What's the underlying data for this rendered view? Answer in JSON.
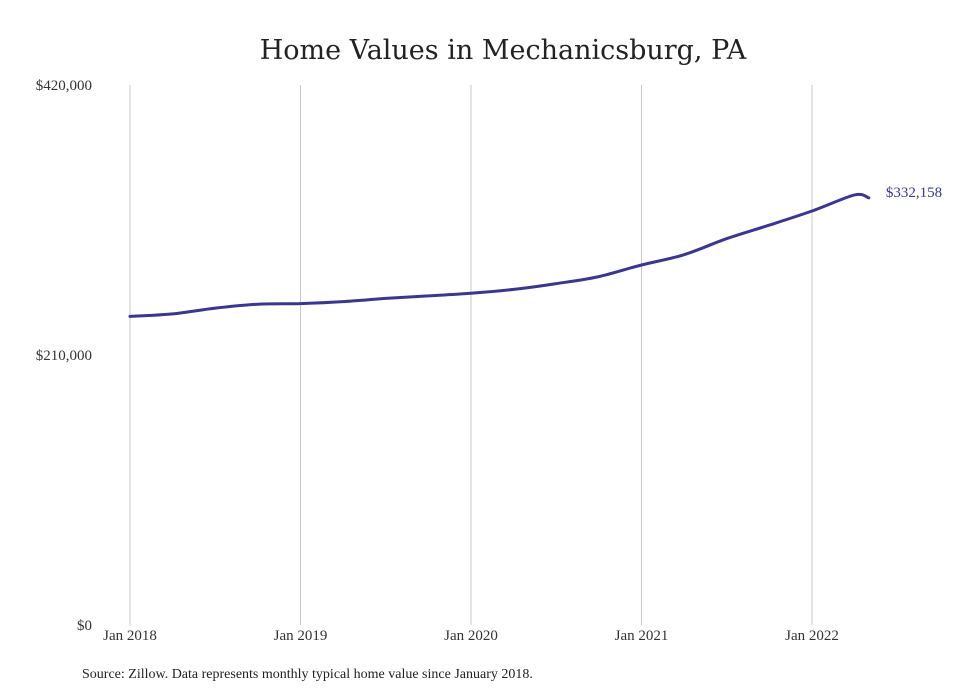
{
  "chart_data": {
    "type": "line",
    "title": "Home Values in Mechanicsburg, PA",
    "xlabel": "",
    "ylabel": "",
    "ylim": [
      0,
      420000
    ],
    "y_ticks": [
      {
        "value": 0,
        "label": "$0"
      },
      {
        "value": 210000,
        "label": "$210,000"
      },
      {
        "value": 420000,
        "label": "$420,000"
      }
    ],
    "x_ticks": [
      {
        "value": "2018-01",
        "label": "Jan 2018"
      },
      {
        "value": "2019-01",
        "label": "Jan 2019"
      },
      {
        "value": "2020-01",
        "label": "Jan 2020"
      },
      {
        "value": "2021-01",
        "label": "Jan 2021"
      },
      {
        "value": "2022-01",
        "label": "Jan 2022"
      }
    ],
    "xlim": [
      "2018-01",
      "2022-05"
    ],
    "grid": "vertical",
    "color": "#3a3596",
    "series": [
      {
        "x": [
          "2018-01",
          "2018-04",
          "2018-07",
          "2018-10",
          "2019-01",
          "2019-04",
          "2019-07",
          "2019-10",
          "2020-01",
          "2020-04",
          "2020-07",
          "2020-10",
          "2021-01",
          "2021-04",
          "2021-07",
          "2021-10",
          "2022-01",
          "2022-04",
          "2022-05"
        ],
        "values": [
          240000,
          242000,
          246500,
          249500,
          250000,
          251500,
          254000,
          256000,
          258000,
          261000,
          265500,
          271000,
          280000,
          288000,
          300500,
          311000,
          322000,
          334500,
          332158
        ]
      }
    ],
    "end_label": "$332,158"
  },
  "source": "Source: Zillow. Data represents monthly typical home value since January 2018."
}
